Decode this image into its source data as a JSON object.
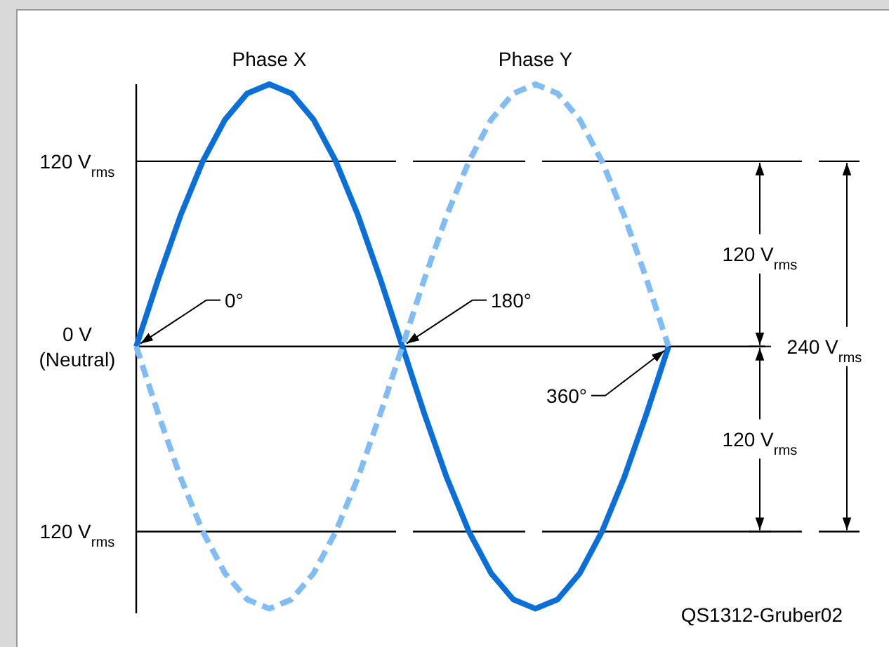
{
  "chart_data": {
    "type": "line",
    "categories": [
      null,
      null,
      null,
      null,
      null,
      null,
      null,
      null,
      null,
      null,
      null,
      null,
      null,
      null,
      null,
      null,
      null,
      null,
      null,
      null,
      null,
      null,
      null,
      null,
      null
    ],
    "series": [
      {
        "name": "Phase X",
        "color": "#0a6fd8",
        "line_style": "solid",
        "values": [
          0,
          44,
          85,
          120,
          147,
          164,
          170,
          164,
          147,
          120,
          85,
          44,
          0,
          -44,
          -85,
          -120,
          -147,
          -164,
          -170,
          -164,
          -147,
          -120,
          -85,
          -44,
          0
        ]
      },
      {
        "name": "Phase Y",
        "color": "#80bdf7",
        "line_style": "dashed",
        "values": [
          0,
          -44,
          -85,
          -120,
          -147,
          -164,
          -170,
          -164,
          -147,
          -120,
          -85,
          -44,
          0,
          44,
          85,
          120,
          147,
          164,
          170,
          164,
          147,
          120,
          85,
          44,
          0
        ]
      }
    ],
    "ylim": [
      -173,
      170
    ],
    "yticks": [
      {
        "value": 120,
        "label": "120 V$_{rms}$"
      },
      {
        "value": 0,
        "label": "0 V\n(Neutral)"
      },
      {
        "value": -120,
        "label": "120 V$_{rms}$"
      }
    ],
    "tick_labels": "y",
    "marker": "none",
    "ref_lines": [
      {
        "axis": "y",
        "value": 120,
        "line_style": "dashed"
      },
      {
        "axis": "y",
        "value": -120,
        "line_style": "dashed"
      }
    ],
    "annotations": [
      "0°",
      "180°",
      "360°",
      "120 V$_{rms}$",
      "120 V$_{rms}$",
      "240 V$_{rms}$",
      "QS1312-Gruber02"
    ]
  }
}
